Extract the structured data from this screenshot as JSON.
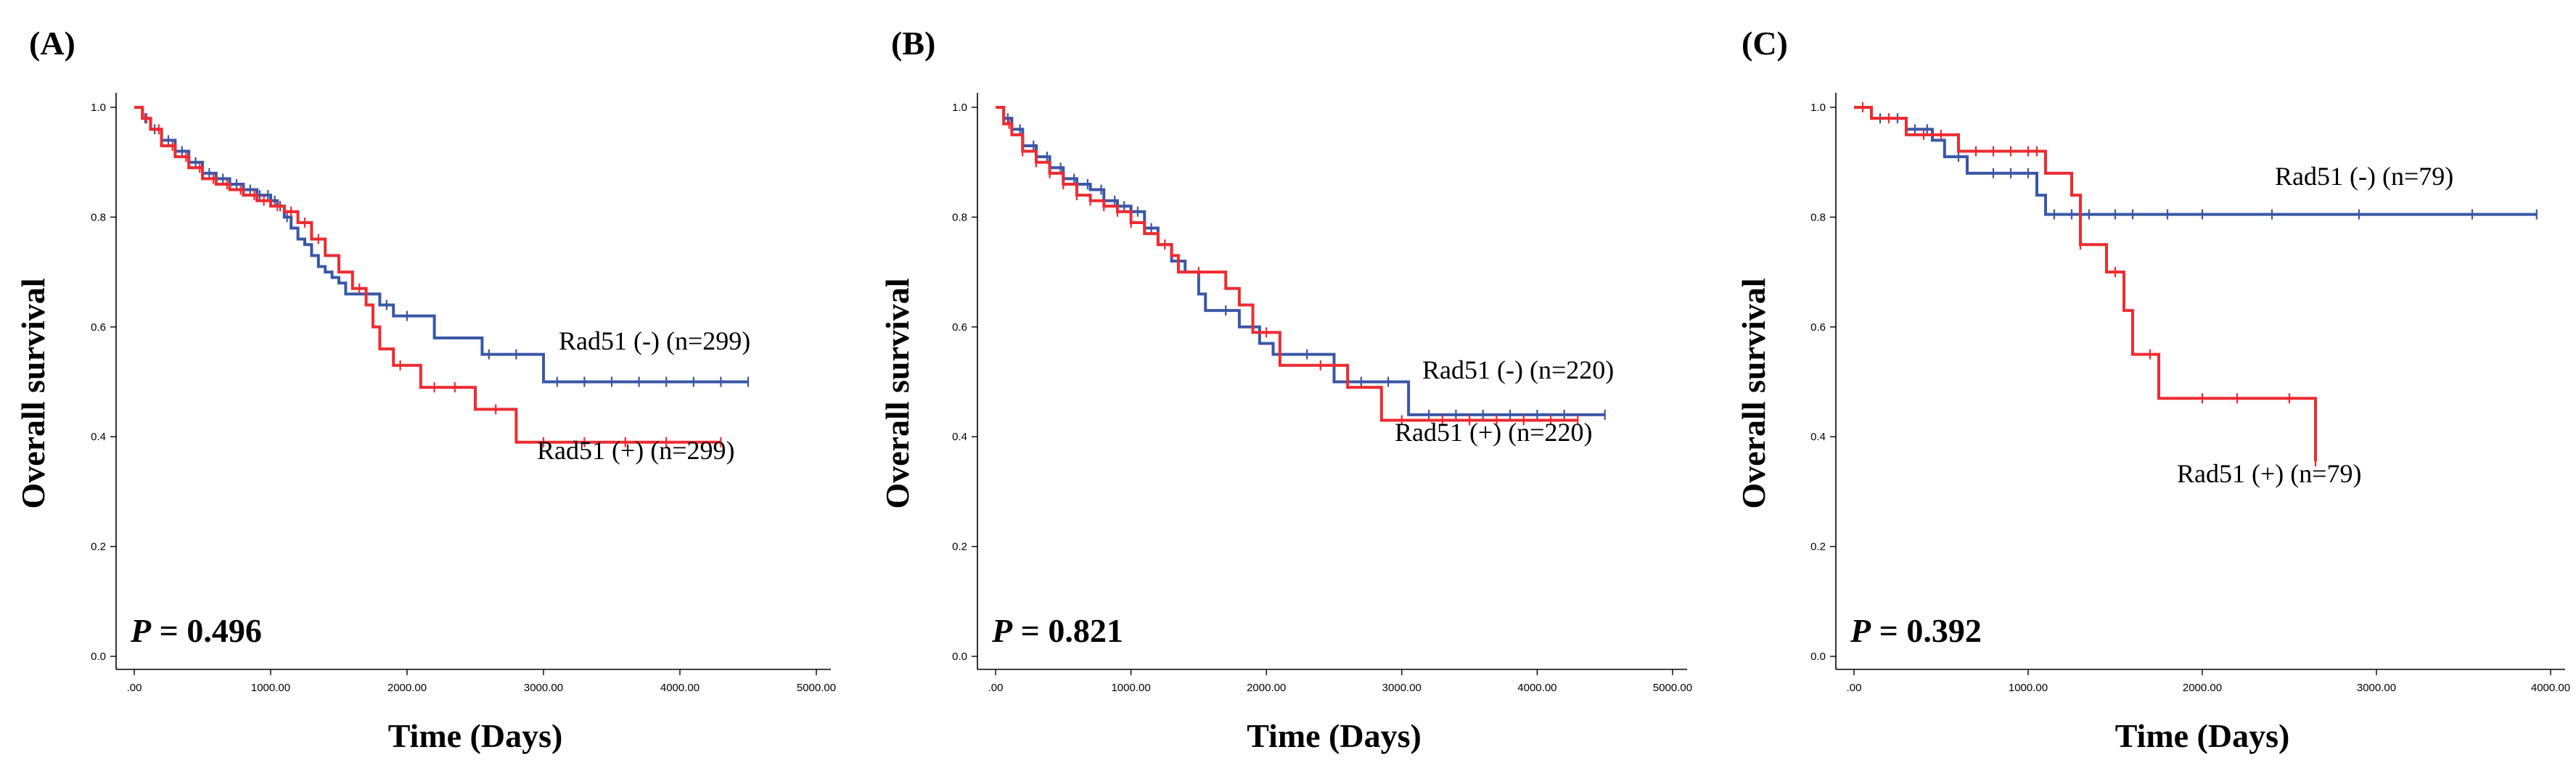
{
  "figure": {
    "colors": {
      "negative": "#3a57a6",
      "positive": "#ee2b31"
    }
  },
  "chart_data": [
    {
      "type": "line",
      "chart_subtype": "kaplan-meier",
      "panel": "(A)",
      "xlabel": "Time (Days)",
      "ylabel": "Overall survival",
      "xlim": [
        0,
        5000
      ],
      "ylim": [
        0,
        1
      ],
      "xticks": [
        ".00",
        "1000.00",
        "2000.00",
        "3000.00",
        "4000.00",
        "5000.00"
      ],
      "yticks": [
        "0.0",
        "0.2",
        "0.4",
        "0.6",
        "0.8",
        "1.0"
      ],
      "p_label": "P",
      "p_value": "= 0.496",
      "series": [
        {
          "name": "Rad51 (-) (n=299)",
          "group": "negative",
          "x": [
            0,
            60,
            120,
            200,
            300,
            400,
            500,
            600,
            700,
            800,
            900,
            1000,
            1050,
            1100,
            1150,
            1200,
            1250,
            1300,
            1350,
            1400,
            1450,
            1500,
            1550,
            1600,
            1800,
            1900,
            2200,
            2550,
            3000,
            4500
          ],
          "y": [
            1.0,
            0.98,
            0.96,
            0.94,
            0.92,
            0.9,
            0.88,
            0.87,
            0.86,
            0.85,
            0.84,
            0.83,
            0.82,
            0.8,
            0.78,
            0.76,
            0.75,
            0.73,
            0.71,
            0.7,
            0.69,
            0.68,
            0.66,
            0.66,
            0.64,
            0.62,
            0.58,
            0.55,
            0.5,
            0.5
          ],
          "censor_x": [
            80,
            150,
            250,
            350,
            450,
            550,
            650,
            750,
            850,
            920,
            980,
            1030,
            1070,
            1120,
            1700,
            1850,
            2000,
            2600,
            2800,
            3100,
            3300,
            3500,
            3700,
            3900,
            4100,
            4300,
            4500
          ]
        },
        {
          "name": "Rad51 (+) (n=299)",
          "group": "positive",
          "x": [
            0,
            60,
            120,
            200,
            300,
            400,
            500,
            600,
            700,
            800,
            900,
            1000,
            1100,
            1200,
            1300,
            1400,
            1500,
            1600,
            1700,
            1750,
            1800,
            1900,
            2100,
            2500,
            2800,
            4300
          ],
          "y": [
            1.0,
            0.98,
            0.96,
            0.93,
            0.91,
            0.89,
            0.87,
            0.86,
            0.85,
            0.84,
            0.83,
            0.82,
            0.81,
            0.79,
            0.76,
            0.73,
            0.7,
            0.67,
            0.64,
            0.6,
            0.56,
            0.53,
            0.49,
            0.45,
            0.39,
            0.39
          ],
          "censor_x": [
            90,
            180,
            280,
            380,
            480,
            580,
            680,
            780,
            880,
            950,
            1050,
            1150,
            1250,
            1350,
            1650,
            1950,
            2200,
            2350,
            2650,
            3000,
            3300,
            3600,
            3900,
            4300
          ]
        }
      ]
    },
    {
      "type": "line",
      "chart_subtype": "kaplan-meier",
      "panel": "(B)",
      "xlabel": "Time (Days)",
      "ylabel": "Overall survival",
      "xlim": [
        0,
        5000
      ],
      "ylim": [
        0,
        1
      ],
      "xticks": [
        ".00",
        "1000.00",
        "2000.00",
        "3000.00",
        "4000.00",
        "5000.00"
      ],
      "yticks": [
        "0.0",
        "0.2",
        "0.4",
        "0.6",
        "0.8",
        "1.0"
      ],
      "p_label": "P",
      "p_value": "= 0.821",
      "series": [
        {
          "name": "Rad51 (-) (n=220)",
          "group": "negative",
          "x": [
            0,
            60,
            120,
            200,
            300,
            400,
            500,
            600,
            700,
            800,
            900,
            1000,
            1100,
            1200,
            1300,
            1400,
            1500,
            1550,
            1800,
            1950,
            2050,
            2500,
            3050,
            4500
          ],
          "y": [
            1.0,
            0.98,
            0.96,
            0.93,
            0.91,
            0.89,
            0.87,
            0.86,
            0.85,
            0.83,
            0.82,
            0.81,
            0.78,
            0.75,
            0.72,
            0.7,
            0.66,
            0.63,
            0.6,
            0.57,
            0.55,
            0.5,
            0.44,
            0.44
          ],
          "censor_x": [
            90,
            180,
            280,
            380,
            480,
            580,
            680,
            780,
            880,
            950,
            1050,
            1150,
            1700,
            1900,
            2300,
            2700,
            2900,
            3200,
            3400,
            3600,
            3800,
            4000,
            4200,
            4500
          ]
        },
        {
          "name": "Rad51 (+) (n=220)",
          "group": "positive",
          "x": [
            0,
            60,
            120,
            200,
            300,
            400,
            500,
            600,
            700,
            800,
            900,
            1000,
            1100,
            1200,
            1300,
            1350,
            1700,
            1800,
            1900,
            2100,
            2600,
            2850,
            4300
          ],
          "y": [
            1.0,
            0.97,
            0.95,
            0.92,
            0.9,
            0.88,
            0.86,
            0.84,
            0.83,
            0.82,
            0.81,
            0.79,
            0.77,
            0.75,
            0.73,
            0.7,
            0.67,
            0.64,
            0.59,
            0.53,
            0.49,
            0.43,
            0.43
          ],
          "censor_x": [
            100,
            200,
            300,
            400,
            500,
            600,
            700,
            800,
            900,
            1000,
            1250,
            1500,
            2000,
            2400,
            3000,
            3300,
            3500,
            3700,
            3900,
            4100,
            4300
          ]
        }
      ]
    },
    {
      "type": "line",
      "chart_subtype": "kaplan-meier",
      "panel": "(C)",
      "xlabel": "Time (Days)",
      "ylabel": "Overall survival",
      "xlim": [
        0,
        4000
      ],
      "ylim": [
        0,
        1
      ],
      "xticks": [
        ".00",
        "1000.00",
        "2000.00",
        "3000.00",
        "4000.00"
      ],
      "yticks": [
        "0.0",
        "0.2",
        "0.4",
        "0.6",
        "0.8",
        "1.0"
      ],
      "p_label": "P",
      "p_value": "= 0.392",
      "series": [
        {
          "name": "Rad51  (-) (n=79)",
          "group": "negative",
          "x": [
            0,
            100,
            300,
            450,
            520,
            650,
            1050,
            1100,
            3920
          ],
          "y": [
            1.0,
            0.98,
            0.96,
            0.94,
            0.91,
            0.88,
            0.84,
            0.805,
            0.805
          ],
          "censor_x": [
            150,
            250,
            350,
            420,
            600,
            800,
            900,
            1000,
            1150,
            1250,
            1350,
            1500,
            1600,
            1800,
            2000,
            2400,
            2900,
            3550,
            3920
          ]
        },
        {
          "name": "Rad51  (+) (n=79)",
          "group": "positive",
          "x": [
            0,
            100,
            300,
            600,
            1100,
            1250,
            1300,
            1450,
            1550,
            1600,
            1750,
            2650
          ],
          "y": [
            1.0,
            0.98,
            0.95,
            0.92,
            0.88,
            0.84,
            0.75,
            0.7,
            0.63,
            0.55,
            0.47,
            0.355
          ],
          "censor_x": [
            50,
            200,
            400,
            500,
            700,
            800,
            900,
            1000,
            1050,
            1300,
            1500,
            1700,
            2000,
            2200,
            2500,
            2650
          ]
        }
      ]
    }
  ]
}
